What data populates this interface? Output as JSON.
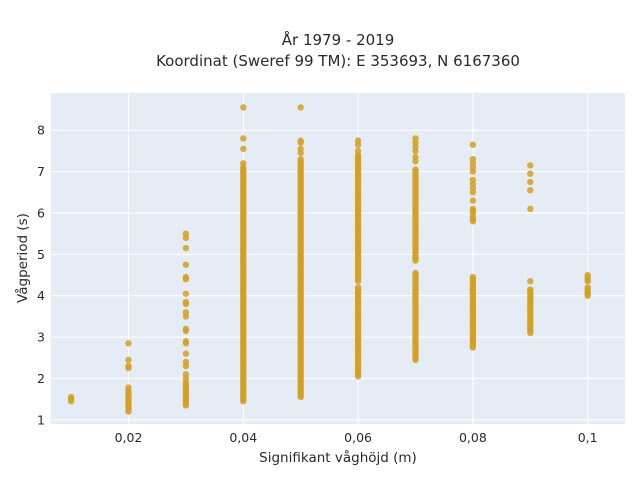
{
  "chart_data": {
    "type": "scatter",
    "title": "År 1979 - 2019",
    "subtitle": "Koordinat (Sweref 99 TM): E 353693, N 6167360",
    "xlabel": "Signifikant våghöjd (m)",
    "ylabel": "Vågperiod (s)",
    "xlim": [
      0.0065,
      0.1065
    ],
    "ylim": [
      0.9,
      8.9
    ],
    "xticks": [
      0.02,
      0.04,
      0.06,
      0.08,
      0.1
    ],
    "xtick_labels": [
      "0,02",
      "0,04",
      "0,06",
      "0,08",
      "0,1"
    ],
    "yticks": [
      1,
      2,
      3,
      4,
      5,
      6,
      7,
      8
    ],
    "ytick_labels": [
      "1",
      "2",
      "3",
      "4",
      "5",
      "6",
      "7",
      "8"
    ],
    "grid": true,
    "marker_color": "#d4a020",
    "background_color": "#e5ecf6",
    "series": [
      {
        "columns": [
          {
            "x": 0.01,
            "points": [
              1.45,
              1.5,
              1.55
            ]
          },
          {
            "x": 0.02,
            "points": [
              1.2,
              1.25,
              1.3,
              1.35,
              1.4,
              1.45,
              1.5,
              1.55,
              1.6,
              1.65,
              1.7,
              1.78,
              2.25,
              2.3,
              2.45,
              2.85
            ]
          },
          {
            "x": 0.03,
            "points": [
              1.35,
              1.4,
              1.45,
              1.5,
              1.55,
              1.6,
              1.65,
              1.7,
              1.75,
              1.8,
              1.85,
              1.9,
              2.0,
              2.1,
              2.3,
              2.4,
              2.6,
              2.85,
              2.9,
              3.15,
              3.2,
              3.5,
              3.6,
              3.8,
              3.85,
              4.05,
              4.4,
              4.45,
              4.75,
              5.15,
              5.4,
              5.5
            ]
          },
          {
            "x": 0.04,
            "points": [
              7.2,
              7.55,
              7.8,
              8.55
            ],
            "ranges": [
              [
                1.45,
                7.1
              ]
            ]
          },
          {
            "x": 0.05,
            "points": [
              7.45,
              7.55,
              7.7,
              7.75,
              8.55
            ],
            "ranges": [
              [
                1.55,
                7.3
              ]
            ]
          },
          {
            "x": 0.06,
            "points": [
              7.5,
              7.65,
              7.75
            ],
            "ranges": [
              [
                2.05,
                4.2
              ],
              [
                4.35,
                7.4
              ]
            ]
          },
          {
            "x": 0.07,
            "points": [
              7.25,
              7.35,
              7.5,
              7.6,
              7.7,
              7.8
            ],
            "ranges": [
              [
                2.45,
                4.55
              ],
              [
                4.85,
                7.05
              ]
            ]
          },
          {
            "x": 0.08,
            "points": [
              5.8,
              5.85,
              5.9,
              6.0,
              6.05,
              6.1,
              6.3,
              6.5,
              6.6,
              6.7,
              6.8,
              7.0,
              7.1,
              7.2,
              7.3,
              7.65
            ],
            "ranges": [
              [
                2.75,
                4.45
              ]
            ]
          },
          {
            "x": 0.09,
            "points": [
              4.35,
              6.1,
              6.55,
              6.75,
              6.95,
              7.15
            ],
            "ranges": [
              [
                3.1,
                4.15
              ]
            ]
          },
          {
            "x": 0.1,
            "points": [
              4.0,
              4.05,
              4.1,
              4.15,
              4.2,
              4.35,
              4.4,
              4.45,
              4.5
            ]
          }
        ]
      }
    ]
  }
}
